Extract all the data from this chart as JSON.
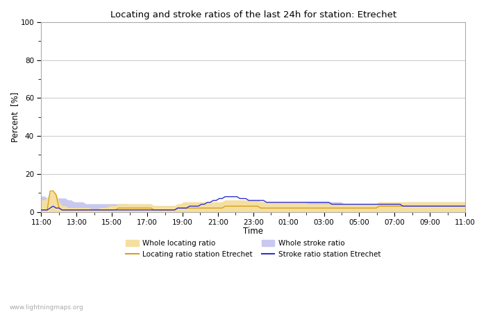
{
  "title": "Locating and stroke ratios of the last 24h for station: Etrechet",
  "xlabel": "Time",
  "ylabel": "Percent  [%]",
  "ylim": [
    0,
    100
  ],
  "yticks": [
    0,
    20,
    40,
    60,
    80,
    100
  ],
  "x_tick_labels": [
    "11:00",
    "13:00",
    "15:00",
    "17:00",
    "19:00",
    "21:00",
    "23:00",
    "01:00",
    "03:00",
    "05:00",
    "07:00",
    "09:00",
    "11:00"
  ],
  "watermark": "www.lightningmaps.org",
  "bg_color": "#ffffff",
  "plot_bg_color": "#ffffff",
  "grid_color": "#c8c8c8",
  "whole_locating_fill_color": "#f5dfa0",
  "whole_stroke_fill_color": "#c8c8f0",
  "locating_line_color": "#d4a020",
  "stroke_line_color": "#3030d0",
  "whole_locating_ratio": [
    6,
    6,
    7,
    10,
    11,
    9,
    5,
    3,
    3,
    2,
    2,
    2,
    2,
    2,
    2,
    2,
    2,
    1,
    1,
    1,
    2,
    2,
    2,
    3,
    3,
    3,
    4,
    4,
    4,
    4,
    4,
    4,
    4,
    4,
    4,
    4,
    4,
    4,
    3,
    3,
    3,
    3,
    3,
    3,
    3,
    3,
    4,
    4,
    5,
    5,
    5,
    5,
    5,
    5,
    5,
    5,
    5,
    5,
    5,
    5,
    5,
    5,
    6,
    6,
    6,
    6,
    6,
    6,
    6,
    6,
    6,
    6,
    6,
    6,
    5,
    5,
    5,
    5,
    5,
    5,
    5,
    5,
    5,
    5,
    5,
    5,
    5,
    5,
    5,
    5,
    4,
    4,
    4,
    4,
    4,
    4,
    4,
    4,
    4,
    4,
    4,
    4,
    4,
    4,
    4,
    4,
    4,
    4,
    4,
    4,
    4,
    4,
    4,
    4,
    5,
    5,
    5,
    5,
    5,
    5,
    5,
    5,
    5,
    5,
    5,
    5,
    5,
    5,
    5,
    5,
    5,
    5,
    5,
    5,
    5,
    5,
    5,
    5,
    5,
    5,
    5,
    5,
    5,
    5
  ],
  "whole_stroke_ratio": [
    8,
    8,
    7,
    6,
    7,
    7,
    7,
    7,
    7,
    6,
    6,
    5,
    5,
    5,
    5,
    4,
    4,
    4,
    4,
    4,
    4,
    4,
    4,
    4,
    4,
    4,
    4,
    4,
    4,
    4,
    3,
    3,
    3,
    3,
    3,
    3,
    3,
    3,
    3,
    3,
    3,
    3,
    3,
    3,
    3,
    3,
    3,
    3,
    3,
    3,
    4,
    4,
    4,
    4,
    4,
    4,
    4,
    4,
    4,
    4,
    4,
    4,
    4,
    4,
    5,
    5,
    5,
    5,
    5,
    5,
    5,
    5,
    5,
    5,
    5,
    5,
    5,
    5,
    5,
    5,
    5,
    5,
    5,
    5,
    5,
    5,
    5,
    5,
    5,
    5,
    5,
    5,
    5,
    5,
    5,
    5,
    5,
    5,
    5,
    5,
    5,
    5,
    4,
    4,
    4,
    4,
    4,
    4,
    4,
    4,
    4,
    4,
    4,
    4,
    4,
    4,
    4,
    4,
    4,
    4,
    4,
    4,
    4,
    4,
    5,
    5,
    5,
    5,
    5,
    5,
    5,
    5,
    5,
    5,
    5,
    5,
    5,
    5,
    5,
    5,
    5,
    5,
    5,
    5
  ],
  "locating_station_ratio": [
    1,
    1,
    1,
    11,
    11,
    9,
    2,
    1,
    1,
    1,
    1,
    1,
    1,
    1,
    1,
    1,
    1,
    1,
    1,
    1,
    1,
    1,
    1,
    1,
    1,
    1,
    2,
    2,
    2,
    2,
    2,
    2,
    2,
    2,
    2,
    2,
    2,
    2,
    1,
    1,
    1,
    1,
    1,
    1,
    1,
    1,
    2,
    2,
    2,
    2,
    2,
    2,
    2,
    2,
    2,
    2,
    2,
    2,
    2,
    2,
    2,
    2,
    3,
    3,
    3,
    3,
    3,
    3,
    3,
    3,
    3,
    3,
    3,
    3,
    2,
    2,
    2,
    2,
    2,
    2,
    2,
    2,
    2,
    2,
    2,
    2,
    2,
    2,
    2,
    2,
    2,
    2,
    2,
    2,
    2,
    2,
    2,
    2,
    2,
    2,
    2,
    2,
    2,
    2,
    2,
    2,
    2,
    2,
    2,
    2,
    2,
    2,
    2,
    2,
    3,
    3,
    3,
    3,
    3,
    3,
    3,
    3,
    3,
    3,
    3,
    3,
    3,
    3,
    3,
    3,
    3,
    3,
    3,
    3,
    3,
    3,
    3,
    3,
    3,
    3,
    3,
    3,
    3,
    3
  ],
  "stroke_station_ratio": [
    1,
    1,
    1,
    2,
    3,
    2,
    2,
    1,
    1,
    1,
    1,
    1,
    1,
    1,
    1,
    1,
    1,
    1,
    1,
    1,
    1,
    1,
    1,
    1,
    1,
    1,
    1,
    1,
    1,
    1,
    1,
    1,
    1,
    1,
    1,
    1,
    1,
    1,
    1,
    1,
    1,
    1,
    1,
    1,
    1,
    1,
    2,
    2,
    2,
    2,
    3,
    3,
    3,
    3,
    4,
    4,
    5,
    5,
    6,
    6,
    7,
    7,
    8,
    8,
    8,
    8,
    8,
    7,
    7,
    7,
    6,
    6,
    6,
    6,
    6,
    6,
    5,
    5,
    5,
    5,
    5,
    5,
    5,
    5,
    5,
    5,
    5,
    5,
    5,
    5,
    5,
    5,
    5,
    5,
    5,
    5,
    5,
    5,
    4,
    4,
    4,
    4,
    4,
    4,
    4,
    4,
    4,
    4,
    4,
    4,
    4,
    4,
    4,
    4,
    4,
    4,
    4,
    4,
    4,
    4,
    4,
    4,
    3,
    3,
    3,
    3,
    3,
    3,
    3,
    3,
    3,
    3,
    3,
    3,
    3,
    3,
    3,
    3,
    3,
    3,
    3,
    3,
    3,
    3
  ]
}
